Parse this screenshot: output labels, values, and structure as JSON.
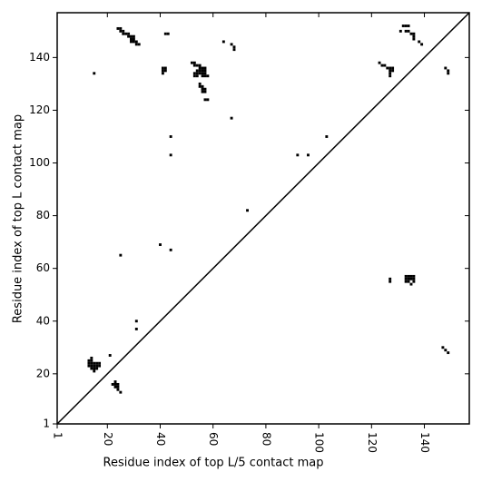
{
  "chart_data": {
    "type": "scatter",
    "marker": "square",
    "color": "#000000",
    "x_label": "Residue index of top L/5 contact map",
    "y_label": "Residue index of top L contact map",
    "xlim": [
      1,
      157
    ],
    "ylim": [
      1,
      157
    ],
    "xticks": [
      1,
      20,
      40,
      60,
      80,
      100,
      120,
      140
    ],
    "yticks": [
      1,
      20,
      40,
      60,
      80,
      100,
      120,
      140
    ],
    "diagonal": true,
    "x": [
      24,
      25,
      25,
      26,
      26,
      27,
      28,
      28,
      29,
      30,
      29,
      30,
      29,
      30,
      31,
      31,
      32,
      42,
      43,
      64,
      67,
      68,
      68,
      15,
      41,
      42,
      41,
      42,
      41,
      52,
      53,
      53,
      54,
      55,
      55,
      56,
      57,
      54,
      55,
      56,
      57,
      53,
      54,
      55,
      56,
      57,
      53,
      54,
      56,
      57,
      58,
      55,
      55,
      56,
      56,
      57,
      56,
      57,
      56,
      57,
      58,
      67,
      44,
      44,
      92,
      96,
      103,
      73,
      40,
      44,
      25,
      31,
      31,
      21,
      14,
      13,
      14,
      13,
      14,
      15,
      16,
      17,
      13,
      14,
      15,
      16,
      17,
      14,
      15,
      16,
      15,
      23,
      22,
      23,
      24,
      23,
      24,
      24,
      25,
      132,
      133,
      134,
      131,
      133,
      134,
      135,
      136,
      136,
      136,
      138,
      139,
      123,
      124,
      125,
      126,
      127,
      128,
      127,
      128,
      127,
      127,
      148,
      149,
      149,
      127,
      127,
      133,
      134,
      135,
      136,
      133,
      134,
      135,
      136,
      133,
      134,
      136,
      135,
      147,
      148,
      149
    ],
    "y": [
      151,
      151,
      150,
      150,
      149,
      149,
      149,
      148,
      148,
      148,
      147,
      147,
      146,
      146,
      146,
      145,
      145,
      149,
      149,
      146,
      145,
      143,
      144,
      134,
      136,
      136,
      135,
      135,
      134,
      138,
      138,
      137,
      137,
      137,
      136,
      136,
      136,
      135,
      135,
      135,
      135,
      134,
      134,
      134,
      134,
      134,
      133,
      133,
      133,
      133,
      133,
      130,
      129,
      129,
      128,
      128,
      127,
      127,
      128,
      124,
      124,
      117,
      110,
      103,
      103,
      103,
      110,
      82,
      69,
      67,
      65,
      40,
      37,
      27,
      26,
      25,
      25,
      24,
      24,
      24,
      24,
      24,
      23,
      23,
      23,
      23,
      23,
      22,
      22,
      22,
      21,
      17,
      16,
      16,
      16,
      15,
      15,
      14,
      13,
      152,
      152,
      152,
      150,
      150,
      150,
      149,
      149,
      148,
      147,
      146,
      145,
      138,
      137,
      137,
      136,
      136,
      136,
      135,
      135,
      134,
      133,
      136,
      135,
      134,
      55,
      56,
      57,
      57,
      57,
      57,
      56,
      56,
      56,
      56,
      55,
      55,
      55,
      54,
      30,
      29,
      28
    ]
  }
}
